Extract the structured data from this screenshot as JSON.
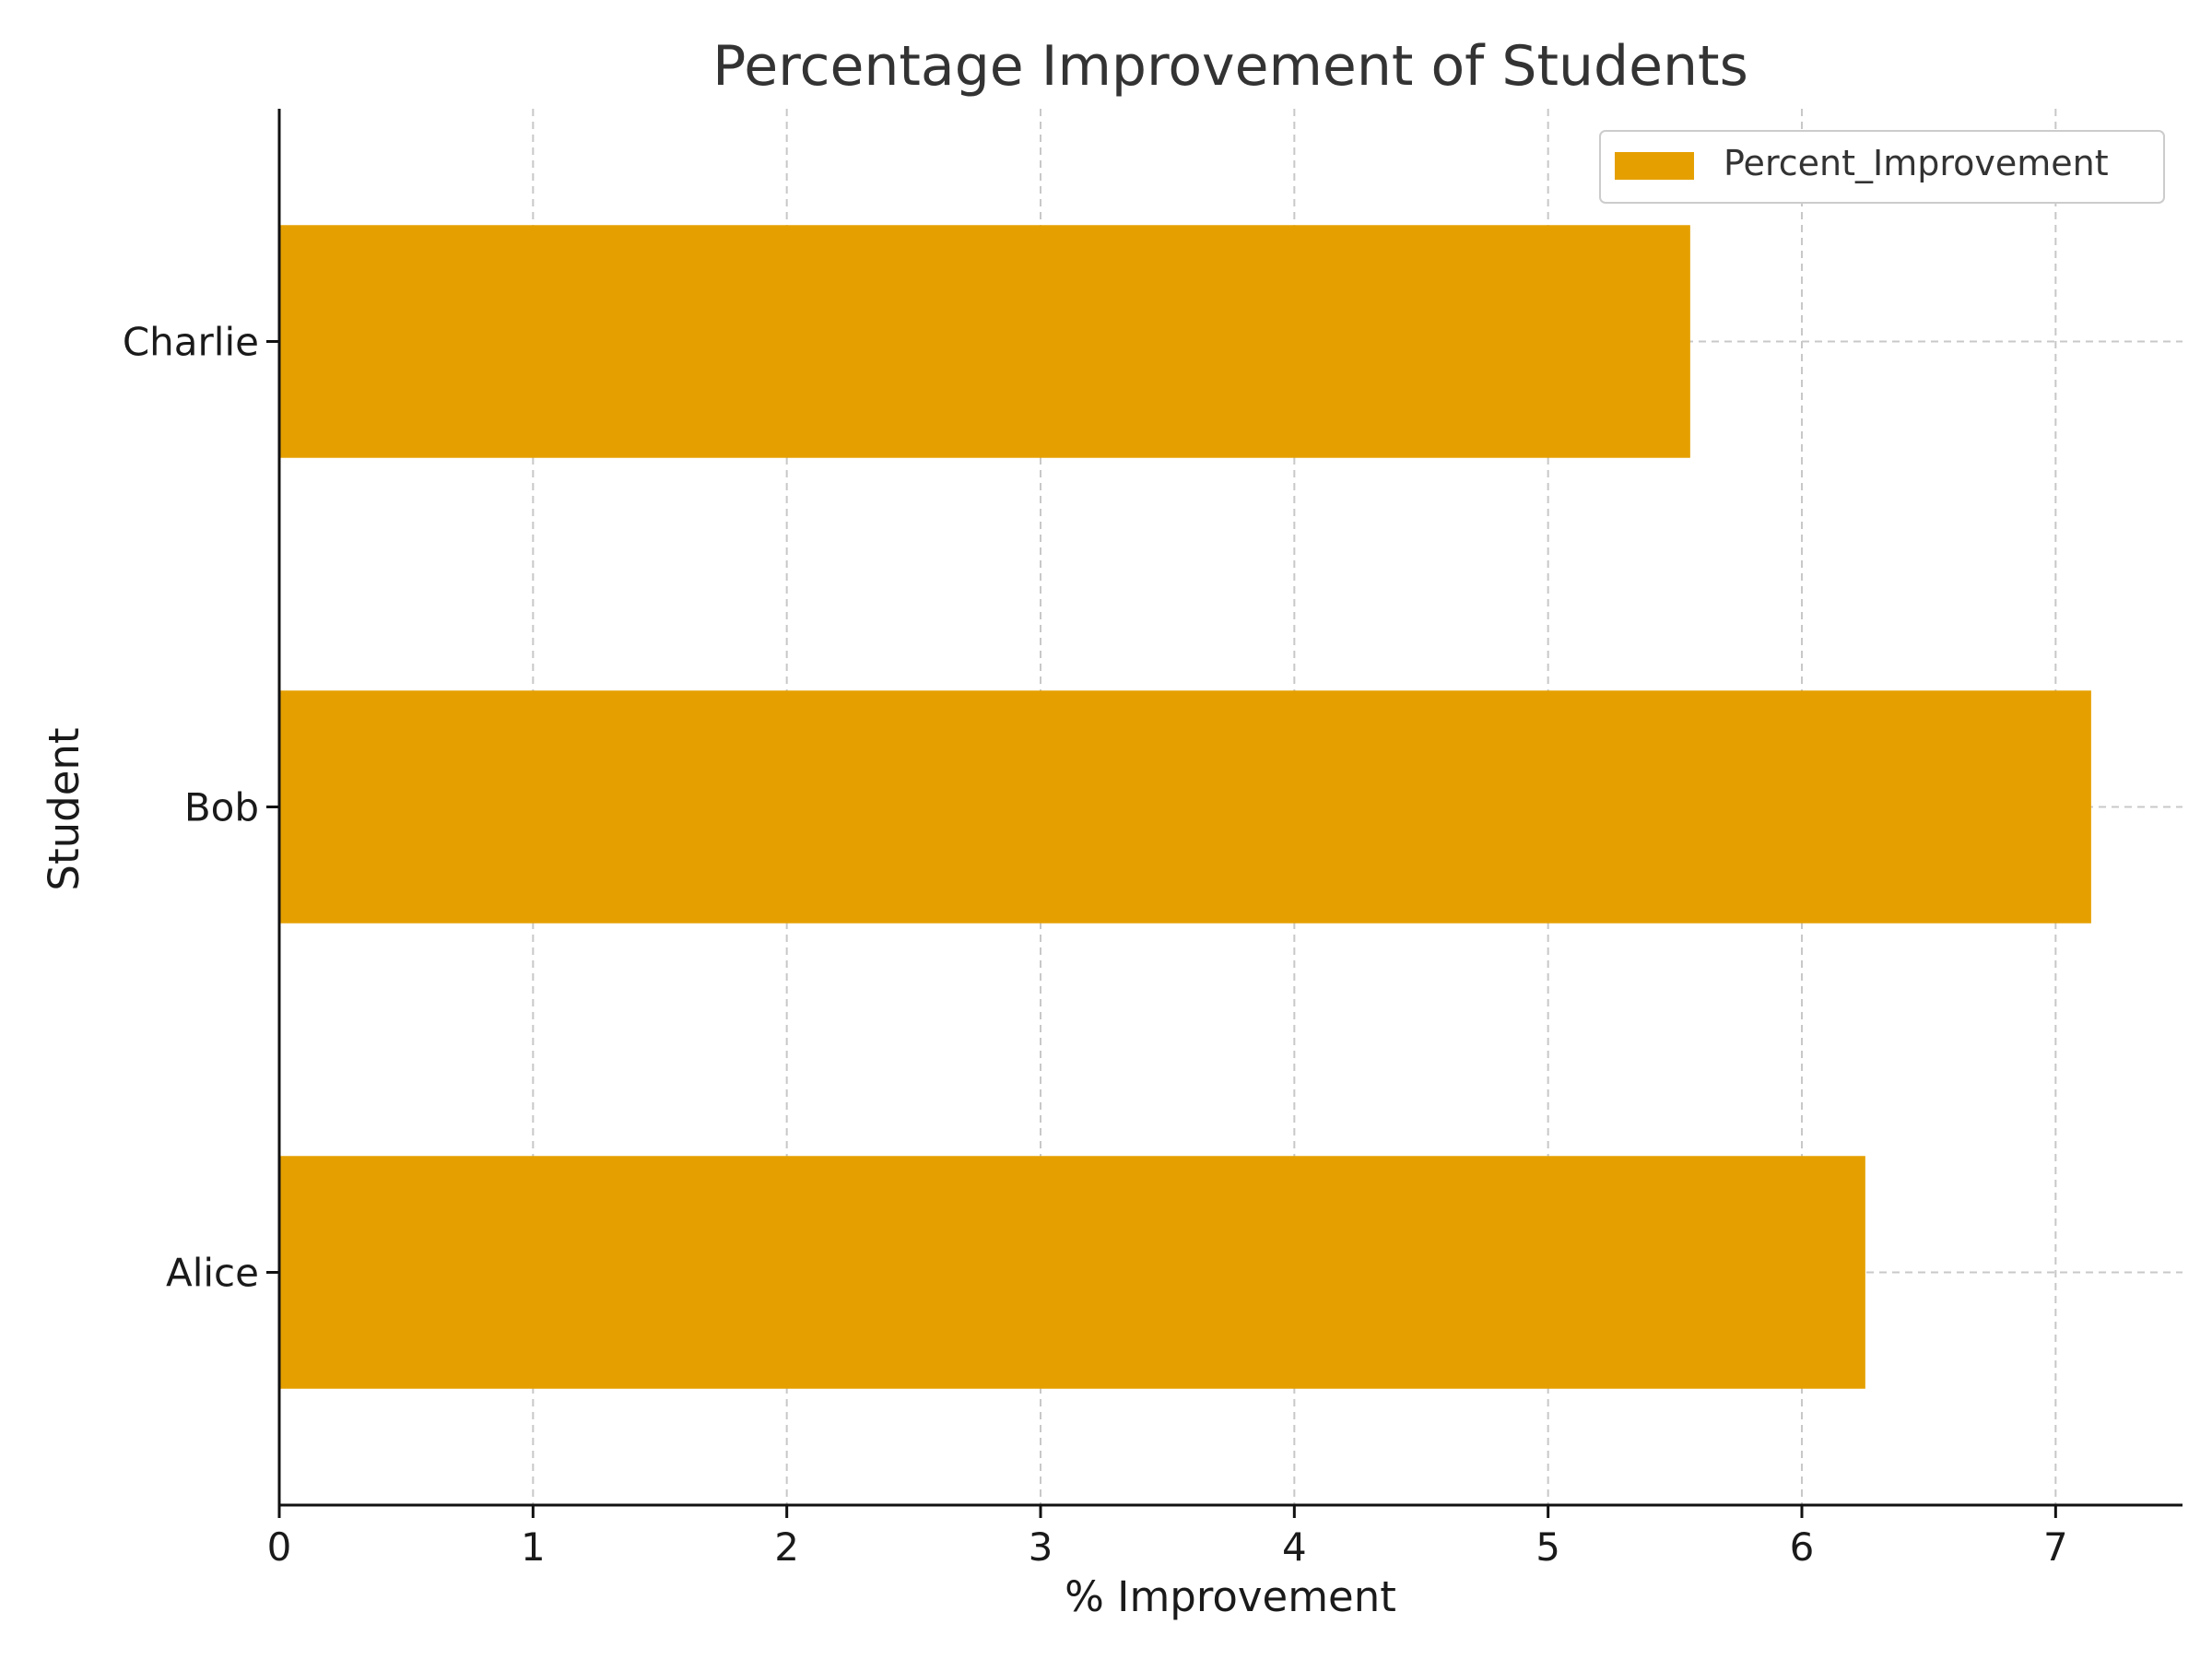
{
  "chart_data": {
    "type": "bar",
    "orientation": "horizontal",
    "title": "Percentage Improvement of Students",
    "xlabel": "% Improvement",
    "ylabel": "Student",
    "categories": [
      "Alice",
      "Bob",
      "Charlie"
    ],
    "series": [
      {
        "name": "Percent_Improvement",
        "values": [
          6.25,
          7.14,
          5.56
        ]
      }
    ],
    "xlim": [
      0,
      7.5
    ],
    "xticks": [
      0,
      1,
      2,
      3,
      4,
      5,
      6,
      7
    ],
    "grid": true,
    "legend_position": "top-right",
    "bar_color": "#E5A000"
  }
}
